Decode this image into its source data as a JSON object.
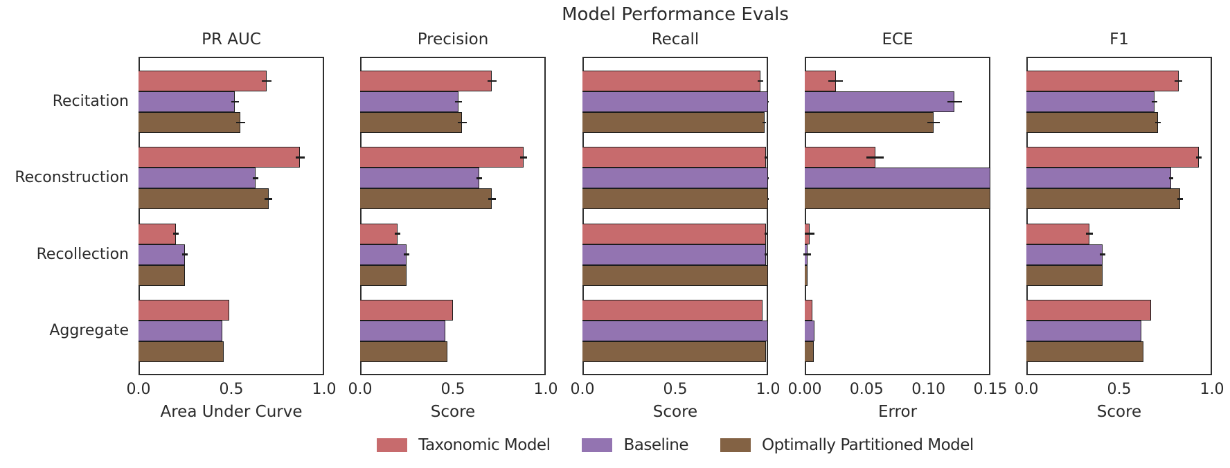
{
  "figure_title": "Model Performance Evals",
  "colors": {
    "taxonomic": "#c76b6d",
    "baseline": "#9374b1",
    "optimal": "#836244",
    "bar_edge": "#1c1c1c",
    "frame": "#2e2e2e",
    "text": "#2b2b2b"
  },
  "legend": {
    "items": [
      {
        "label": "Taxonomic Model",
        "color_key": "taxonomic"
      },
      {
        "label": "Baseline",
        "color_key": "baseline"
      },
      {
        "label": "Optimally Partitioned Model",
        "color_key": "optimal"
      }
    ]
  },
  "chart_data": [
    {
      "type": "bar",
      "orientation": "horizontal",
      "title": "PR AUC",
      "xlabel": "Area Under Curve",
      "xlim": [
        0,
        1.0
      ],
      "xticks": [
        0,
        0.5,
        1.0
      ],
      "xtick_labels": [
        "0.0",
        "0.5",
        "1.0"
      ],
      "categories": [
        "Recitation",
        "Reconstruction",
        "Recollection",
        "Aggregate"
      ],
      "grid": false,
      "series": [
        {
          "name": "Taxonomic Model",
          "values": [
            0.69,
            0.87,
            0.2,
            0.49
          ],
          "errors": [
            0.025,
            0.025,
            0.015,
            0
          ]
        },
        {
          "name": "Baseline",
          "values": [
            0.52,
            0.63,
            0.25,
            0.45
          ],
          "errors": [
            0.02,
            0.015,
            0.015,
            0
          ]
        },
        {
          "name": "Optimally Partitioned Model",
          "values": [
            0.55,
            0.7,
            0.25,
            0.46
          ],
          "errors": [
            0.025,
            0.02,
            0,
            0
          ]
        }
      ]
    },
    {
      "type": "bar",
      "orientation": "horizontal",
      "title": "Precision",
      "xlabel": "Score",
      "xlim": [
        0,
        1.0
      ],
      "xticks": [
        0,
        0.5,
        1.0
      ],
      "xtick_labels": [
        "0.0",
        "0.5",
        "1.0"
      ],
      "categories": [
        "Recitation",
        "Reconstruction",
        "Recollection",
        "Aggregate"
      ],
      "grid": false,
      "series": [
        {
          "name": "Taxonomic Model",
          "values": [
            0.71,
            0.88,
            0.2,
            0.5
          ],
          "errors": [
            0.025,
            0.02,
            0.015,
            0
          ]
        },
        {
          "name": "Baseline",
          "values": [
            0.53,
            0.64,
            0.25,
            0.46
          ],
          "errors": [
            0.02,
            0.015,
            0.015,
            0
          ]
        },
        {
          "name": "Optimally Partitioned Model",
          "values": [
            0.55,
            0.71,
            0.25,
            0.47
          ],
          "errors": [
            0.025,
            0.02,
            0,
            0
          ]
        }
      ]
    },
    {
      "type": "bar",
      "orientation": "horizontal",
      "title": "Recall",
      "xlabel": "Score",
      "xlim": [
        0,
        1.0
      ],
      "xticks": [
        0,
        0.5,
        1.0
      ],
      "xtick_labels": [
        "0.0",
        "0.5",
        "1.0"
      ],
      "categories": [
        "Recitation",
        "Reconstruction",
        "Recollection",
        "Aggregate"
      ],
      "grid": false,
      "series": [
        {
          "name": "Taxonomic Model",
          "values": [
            0.96,
            0.99,
            0.99,
            0.97
          ],
          "errors": [
            0.015,
            0.008,
            0.008,
            0
          ]
        },
        {
          "name": "Baseline",
          "values": [
            1.0,
            1.0,
            0.99,
            1.0
          ],
          "errors": [
            0.005,
            0.004,
            0.008,
            0
          ]
        },
        {
          "name": "Optimally Partitioned Model",
          "values": [
            0.98,
            1.0,
            1.0,
            0.99
          ],
          "errors": [
            0.01,
            0.004,
            0,
            0
          ]
        }
      ]
    },
    {
      "type": "bar",
      "orientation": "horizontal",
      "title": "ECE",
      "xlabel": "Error",
      "xlim": [
        0,
        0.15
      ],
      "xticks": [
        0,
        0.05,
        0.1,
        0.15
      ],
      "xtick_labels": [
        "0.00",
        "0.05",
        "0.10",
        "0.15"
      ],
      "categories": [
        "Recitation",
        "Reconstruction",
        "Recollection",
        "Aggregate"
      ],
      "grid": false,
      "series": [
        {
          "name": "Taxonomic Model",
          "values": [
            0.025,
            0.057,
            0.004,
            0.006
          ],
          "errors": [
            0.006,
            0.007,
            0.004,
            0
          ]
        },
        {
          "name": "Baseline",
          "values": [
            0.121,
            0.15,
            0.002,
            0.008
          ],
          "errors": [
            0.006,
            0,
            0.003,
            0
          ]
        },
        {
          "name": "Optimally Partitioned Model",
          "values": [
            0.104,
            0.15,
            0.002,
            0.007
          ],
          "errors": [
            0.005,
            0,
            0,
            0
          ]
        }
      ]
    },
    {
      "type": "bar",
      "orientation": "horizontal",
      "title": "F1",
      "xlabel": "Score",
      "xlim": [
        0,
        1.0
      ],
      "xticks": [
        0,
        0.5,
        1.0
      ],
      "xtick_labels": [
        "0.0",
        "0.5",
        "1.0"
      ],
      "categories": [
        "Recitation",
        "Reconstruction",
        "Recollection",
        "Aggregate"
      ],
      "grid": false,
      "series": [
        {
          "name": "Taxonomic Model",
          "values": [
            0.82,
            0.93,
            0.34,
            0.67
          ],
          "errors": [
            0.02,
            0.015,
            0.02,
            0
          ]
        },
        {
          "name": "Baseline",
          "values": [
            0.69,
            0.78,
            0.41,
            0.62
          ],
          "errors": [
            0.015,
            0.01,
            0.015,
            0
          ]
        },
        {
          "name": "Optimally Partitioned Model",
          "values": [
            0.71,
            0.83,
            0.41,
            0.63
          ],
          "errors": [
            0.015,
            0.015,
            0,
            0
          ]
        }
      ]
    }
  ]
}
